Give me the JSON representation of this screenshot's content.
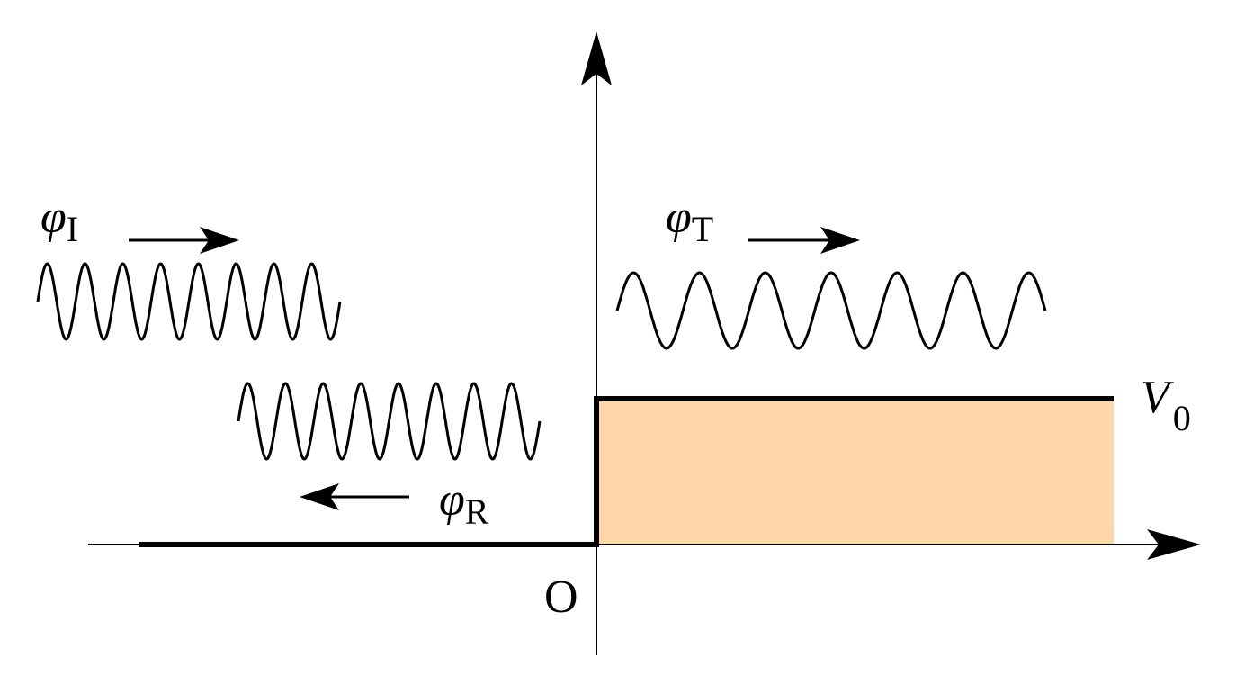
{
  "labels": {
    "incident": {
      "symbol": "φ",
      "subscript": "I"
    },
    "transmitted": {
      "symbol": "φ",
      "subscript": "T"
    },
    "reflected": {
      "symbol": "φ",
      "subscript": "R"
    },
    "potential": {
      "symbol": "V",
      "subscript": "0"
    },
    "origin": "O"
  },
  "waves": {
    "incident": {
      "cycles": 8,
      "direction": "right"
    },
    "reflected": {
      "cycles": 8,
      "direction": "left"
    },
    "transmitted": {
      "cycles": 6.5,
      "direction": "right"
    }
  },
  "colors": {
    "barrier_fill": "#FDD7A8",
    "line": "#000000"
  }
}
